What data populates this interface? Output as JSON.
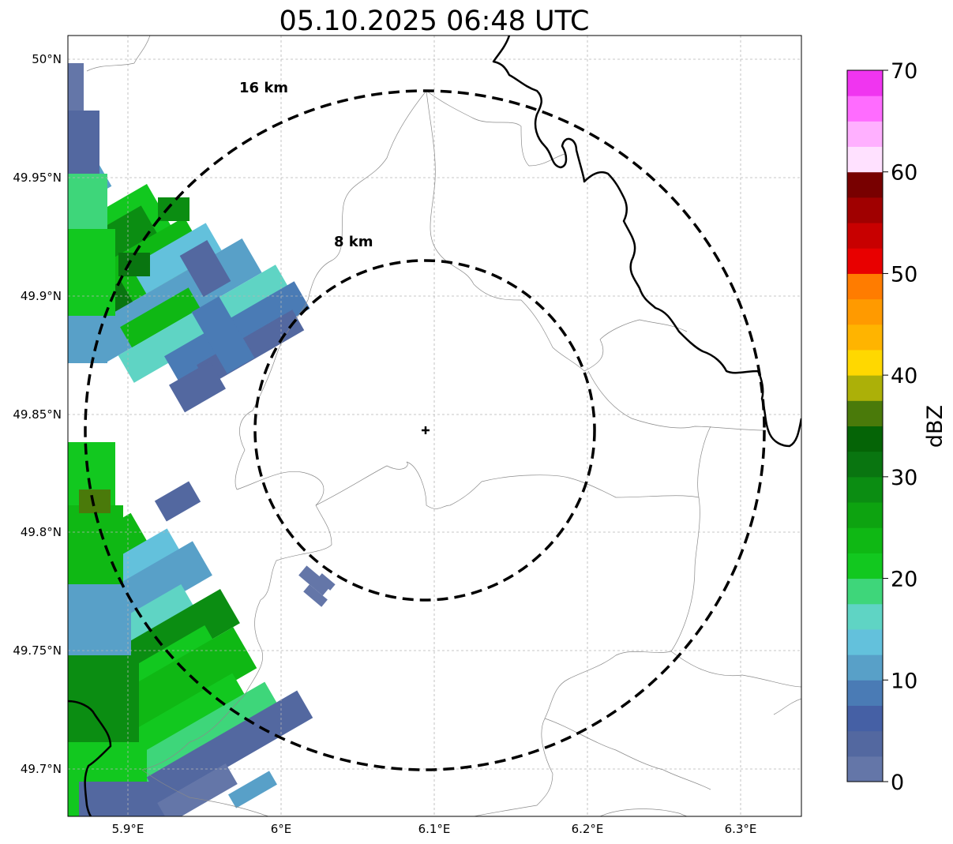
{
  "title": "05.10.2025 06:48 UTC",
  "map": {
    "lon_ticks": [
      "5.9°E",
      "6°E",
      "6.1°E",
      "6.2°E",
      "6.3°E"
    ],
    "lat_ticks": [
      "50°N",
      "49.95°N",
      "49.9°N",
      "49.85°N",
      "49.8°N",
      "49.75°N",
      "49.7°N"
    ],
    "center_marker": "radar-site",
    "range_rings": [
      {
        "label": "16 km",
        "radius_km": 16
      },
      {
        "label": "8 km",
        "radius_km": 8
      }
    ],
    "grid": true
  },
  "colorbar": {
    "label": "dBZ",
    "ticks": [
      "0",
      "10",
      "20",
      "30",
      "40",
      "50",
      "60",
      "70"
    ],
    "range": [
      0,
      70
    ],
    "step": 2.5,
    "colors": [
      "#6476a8",
      "#5368a0",
      "#4560a5",
      "#4a7bb5",
      "#58a0c8",
      "#63c1dc",
      "#5fd4c4",
      "#3ed67a",
      "#12c81f",
      "#0fb814",
      "#0da310",
      "#0b8d12",
      "#097510",
      "#056406",
      "#4a7a0a",
      "#acb008",
      "#ffd800",
      "#ffb400",
      "#ff9a00",
      "#ff7c00",
      "#e80000",
      "#c80000",
      "#a00000",
      "#780000",
      "#ffe1ff",
      "#ffb0ff",
      "#ff6cff",
      "#f035f0"
    ]
  }
}
